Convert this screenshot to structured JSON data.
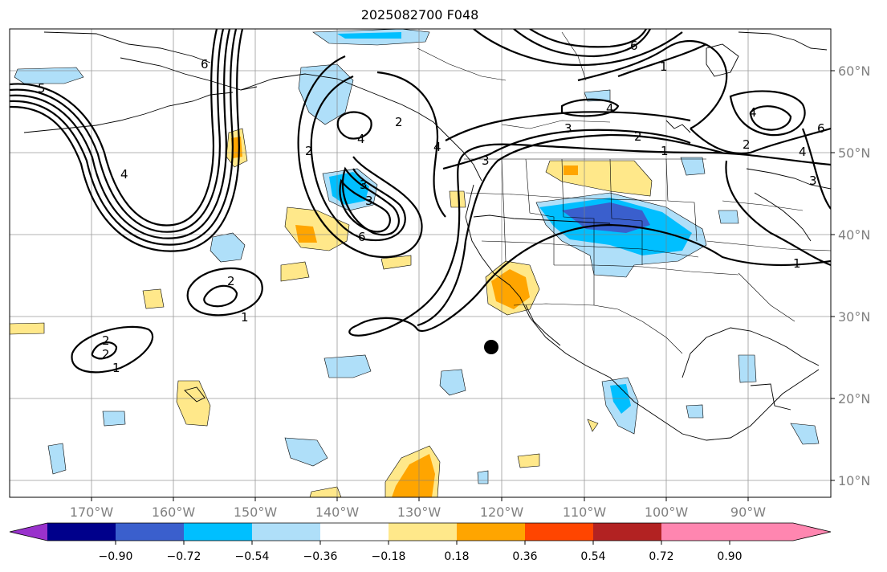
{
  "title": "2025082700 F048",
  "lon_ticks": [
    "170°W",
    "160°W",
    "150°W",
    "140°W",
    "130°W",
    "120°W",
    "110°W",
    "100°W",
    "90°W"
  ],
  "lat_ticks": [
    "60°N",
    "50°N",
    "40°N",
    "30°N",
    "20°N",
    "10°N"
  ],
  "colorbar": {
    "colors": [
      "#9932cc",
      "#00008b",
      "#3a5fcd",
      "#00bfff",
      "#afdff9",
      "#ffffff",
      "#ffe88a",
      "#ffa500",
      "#ff4500",
      "#b22222",
      "#ff86b0"
    ],
    "ticks": [
      "−0.90",
      "−0.72",
      "−0.54",
      "−0.36",
      "−0.18",
      "0.18",
      "0.36",
      "0.54",
      "0.72",
      "0.90"
    ]
  },
  "contour_labels": [
    "6",
    "6",
    "1",
    "5",
    "4",
    "2",
    "4",
    "3",
    "3",
    "6",
    "2",
    "1",
    "2",
    "1",
    "2",
    "2",
    "3",
    "4",
    "3",
    "2",
    "1",
    "4",
    "4",
    "2",
    "4",
    "1",
    "6",
    "3"
  ]
}
